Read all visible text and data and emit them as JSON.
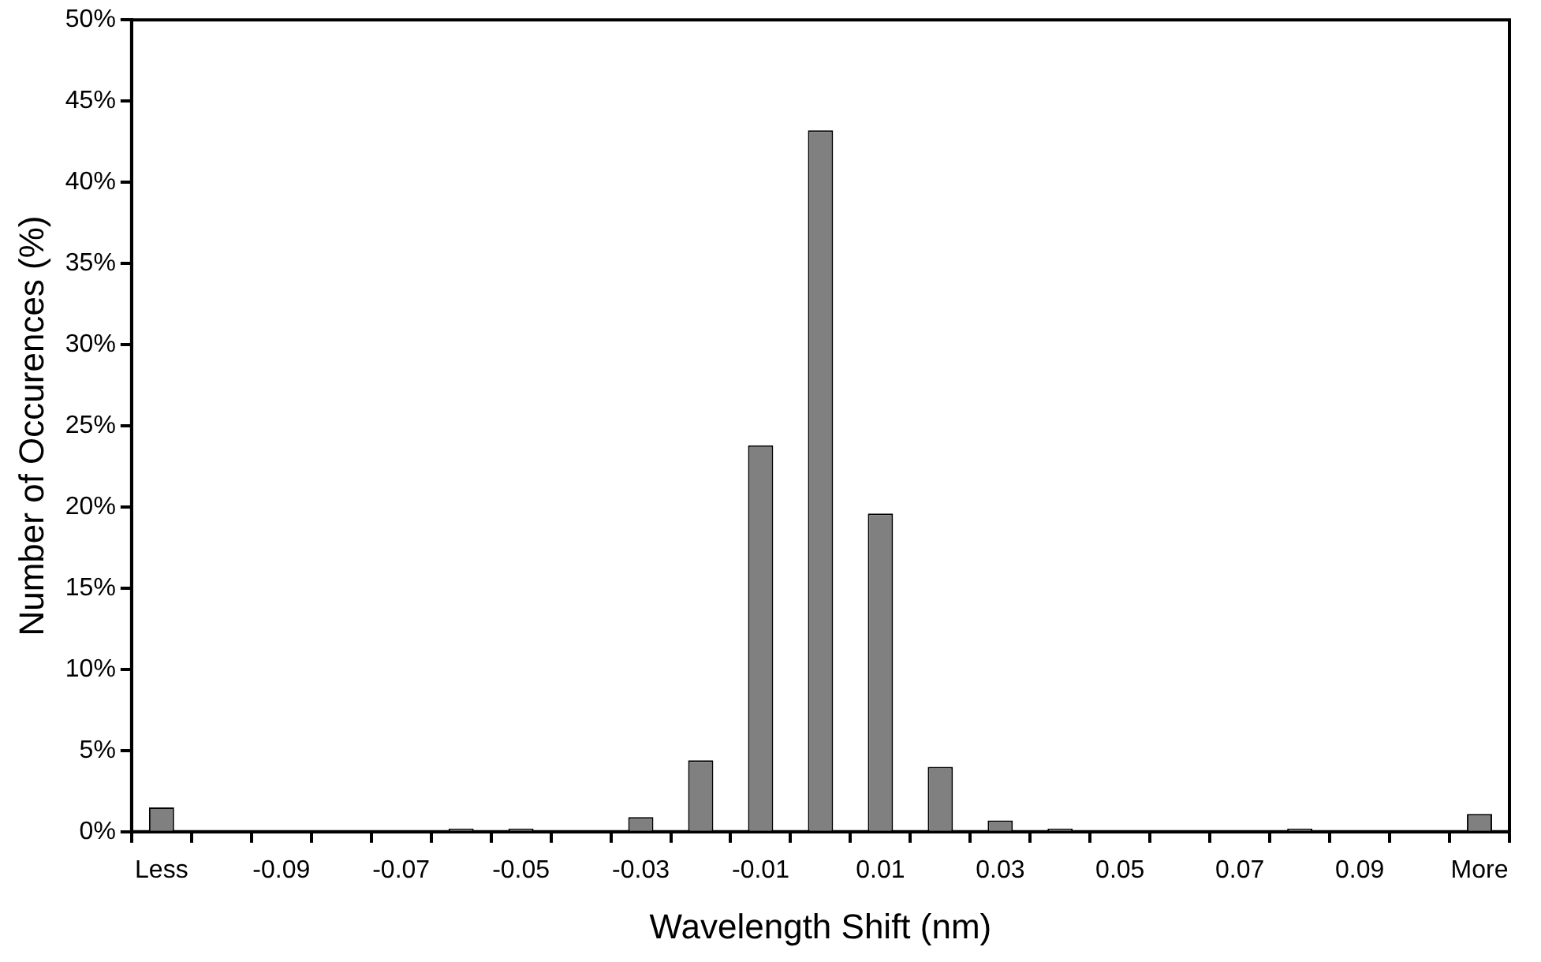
{
  "chart_data": {
    "type": "bar",
    "xlabel": "Wavelength Shift (nm)",
    "ylabel": "Number of Occurences (%)",
    "categories": [
      "Less",
      null,
      "-0.09",
      null,
      "-0.07",
      null,
      "-0.05",
      null,
      "-0.03",
      null,
      "-0.01",
      null,
      "0.01",
      null,
      "0.03",
      null,
      "0.05",
      null,
      "0.07",
      null,
      "0.09",
      null,
      "More"
    ],
    "values": [
      1.5,
      0,
      0,
      0,
      0,
      0.2,
      0.2,
      0,
      0.9,
      4.4,
      23.8,
      43.2,
      19.6,
      4.0,
      0.7,
      0.2,
      0,
      0,
      0,
      0.2,
      0,
      0,
      1.1
    ],
    "color": "#808080",
    "ylim": [
      0,
      50
    ],
    "yticks": [
      {
        "value": 0,
        "label": "0%"
      },
      {
        "value": 5,
        "label": "5%"
      },
      {
        "value": 10,
        "label": "10%"
      },
      {
        "value": 15,
        "label": "15%"
      },
      {
        "value": 20,
        "label": "20%"
      },
      {
        "value": 25,
        "label": "25%"
      },
      {
        "value": 30,
        "label": "30%"
      },
      {
        "value": 35,
        "label": "35%"
      },
      {
        "value": 40,
        "label": "40%"
      },
      {
        "value": 45,
        "label": "45%"
      },
      {
        "value": 50,
        "label": "50%"
      }
    ],
    "grid": false,
    "legend": false
  }
}
